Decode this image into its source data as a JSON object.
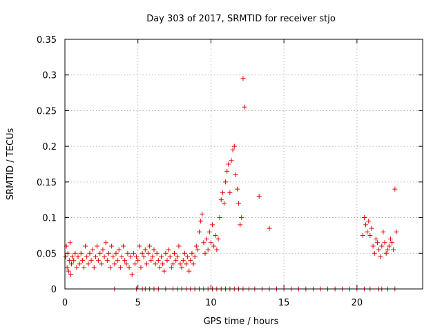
{
  "chart_data": {
    "type": "scatter",
    "title": "Day 303 of 2017, SRMTID for receiver stjo",
    "xlabel": "GPS time / hours",
    "ylabel": "SRMTID / TECUs",
    "xlim": [
      0,
      24.5
    ],
    "ylim": [
      0,
      0.35
    ],
    "xticks": [
      0,
      5,
      10,
      15,
      20
    ],
    "xtick_labels": [
      "0",
      "5",
      "10",
      "15",
      "20"
    ],
    "yticks": [
      0,
      0.05,
      0.1,
      0.15,
      0.2,
      0.25,
      0.3,
      0.35
    ],
    "ytick_labels": [
      "0",
      "0.05",
      "0.1",
      "0.15",
      "0.2",
      "0.25",
      "0.3",
      "0.35"
    ],
    "grid": true,
    "legend": "none",
    "marker": "plus",
    "color": "#e00000",
    "series": [
      {
        "x": [
          0.05,
          0.1,
          0.15,
          0.2,
          0.25,
          0.3,
          0.35,
          0.4,
          0.45,
          0.5,
          0.6,
          0.7,
          0.8,
          0.9,
          1.0,
          1.1,
          1.2,
          1.3,
          1.4,
          1.5,
          1.6,
          1.7,
          1.8,
          1.9,
          2.0,
          2.1,
          2.2,
          2.3,
          2.4,
          2.5,
          2.6,
          2.7,
          2.8,
          2.9,
          3.0,
          3.1,
          3.2,
          3.3,
          3.4,
          3.5,
          3.6,
          3.7,
          3.8,
          3.9,
          4.0,
          4.1,
          4.2,
          4.3,
          4.4,
          4.5,
          4.6,
          4.7,
          4.8,
          4.9,
          5.0,
          5.1,
          5.2,
          5.3,
          5.4,
          5.5,
          5.6,
          5.7,
          5.8,
          5.9,
          6.0,
          6.1,
          6.2,
          6.3,
          6.4,
          6.5,
          6.6,
          6.7,
          6.8,
          6.9,
          7.0,
          7.1,
          7.2,
          7.3,
          7.4,
          7.5,
          7.6,
          7.7,
          7.8,
          7.9,
          8.0,
          8.1,
          8.2,
          8.3,
          8.4,
          8.5,
          8.6,
          8.7,
          8.8,
          8.9,
          9.0,
          9.1,
          9.2,
          9.3,
          9.4,
          9.5,
          9.6,
          9.7,
          9.8,
          9.9,
          10.0,
          10.1,
          10.2,
          10.3,
          10.4,
          10.5,
          10.6,
          10.7,
          10.8,
          10.9,
          11.0,
          11.1,
          11.2,
          11.3,
          11.4,
          11.5,
          11.6,
          11.7,
          11.8,
          11.9,
          12.0,
          12.1,
          12.2,
          12.3,
          13.3,
          14.0,
          20.4,
          20.5,
          20.6,
          20.7,
          20.8,
          20.9,
          21.0,
          21.1,
          21.2,
          21.3,
          21.4,
          21.5,
          21.6,
          21.7,
          21.8,
          21.9,
          22.0,
          22.1,
          22.2,
          22.3,
          22.4,
          22.5,
          22.6,
          22.7
        ],
        "y": [
          0.045,
          0.06,
          0.03,
          0.05,
          0.025,
          0.04,
          0.065,
          0.02,
          0.035,
          0.045,
          0.04,
          0.05,
          0.03,
          0.045,
          0.035,
          0.05,
          0.04,
          0.03,
          0.06,
          0.045,
          0.035,
          0.05,
          0.04,
          0.055,
          0.03,
          0.045,
          0.06,
          0.04,
          0.05,
          0.035,
          0.055,
          0.045,
          0.065,
          0.04,
          0.05,
          0.03,
          0.06,
          0.045,
          0.035,
          0.05,
          0.04,
          0.055,
          0.03,
          0.045,
          0.06,
          0.04,
          0.035,
          0.05,
          0.03,
          0.045,
          0.02,
          0.05,
          0.035,
          0.045,
          0.04,
          0.06,
          0.03,
          0.05,
          0.045,
          0.055,
          0.035,
          0.05,
          0.06,
          0.04,
          0.045,
          0.055,
          0.035,
          0.05,
          0.04,
          0.03,
          0.045,
          0.035,
          0.025,
          0.05,
          0.04,
          0.055,
          0.045,
          0.03,
          0.035,
          0.05,
          0.04,
          0.045,
          0.06,
          0.035,
          0.03,
          0.04,
          0.05,
          0.035,
          0.045,
          0.025,
          0.04,
          0.05,
          0.035,
          0.045,
          0.06,
          0.055,
          0.08,
          0.095,
          0.105,
          0.065,
          0.05,
          0.07,
          0.055,
          0.08,
          0.065,
          0.09,
          0.06,
          0.075,
          0.055,
          0.07,
          0.1,
          0.125,
          0.135,
          0.12,
          0.15,
          0.165,
          0.175,
          0.135,
          0.18,
          0.195,
          0.2,
          0.16,
          0.14,
          0.12,
          0.09,
          0.1,
          0.295,
          0.255,
          0.13,
          0.085,
          0.075,
          0.1,
          0.09,
          0.08,
          0.095,
          0.075,
          0.085,
          0.06,
          0.05,
          0.07,
          0.065,
          0.055,
          0.045,
          0.06,
          0.08,
          0.065,
          0.05,
          0.055,
          0.06,
          0.07,
          0.065,
          0.055,
          0.14,
          0.08
        ]
      },
      {
        "name": "",
        "x": [
          3.4,
          4.9,
          5.3,
          5.5,
          5.8,
          6.1,
          6.4,
          6.9,
          7.4,
          7.7,
          8.0,
          8.3,
          8.6,
          8.9,
          9.2,
          9.5,
          9.8,
          10.1,
          10.4,
          10.7,
          11.0,
          11.3,
          11.6,
          11.9,
          12.2,
          12.6,
          13.0,
          13.5,
          14.0,
          14.5,
          15.0,
          15.5,
          16.0,
          16.5,
          17.0,
          17.5,
          18.0,
          18.5,
          19.0,
          19.5,
          20.0,
          20.5,
          20.9,
          21.5,
          21.7,
          22.1,
          22.6
        ],
        "y": [
          0,
          0,
          0,
          0,
          0,
          0,
          0,
          0,
          0,
          0,
          0,
          0,
          0,
          0,
          0,
          0,
          0,
          0,
          0,
          0,
          0,
          0,
          0,
          0,
          0,
          0,
          0,
          0,
          0,
          0,
          0,
          0,
          0,
          0,
          0,
          0,
          0,
          0,
          0,
          0,
          0,
          0,
          0,
          0,
          0,
          0,
          0
        ]
      }
    ]
  }
}
